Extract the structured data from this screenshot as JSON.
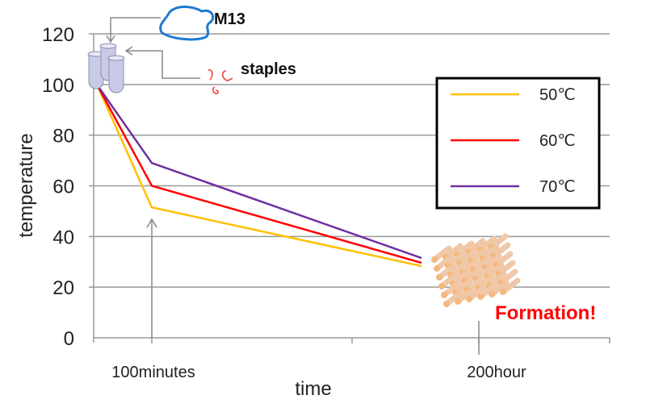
{
  "chart_data": {
    "type": "line",
    "xlabel": "time",
    "ylabel": "temperature",
    "ylim": [
      0,
      120
    ],
    "yticks": [
      0,
      20,
      40,
      60,
      80,
      100,
      120
    ],
    "xtick_labels": [
      "100minutes",
      "200hour"
    ],
    "grid": true,
    "legend_position": "right",
    "series": [
      {
        "name": "50℃",
        "color": "#FFC000",
        "values": [
          100,
          51.5,
          28.3
        ]
      },
      {
        "name": "60℃",
        "color": "#FF0000",
        "values": [
          100,
          60,
          29.6
        ]
      },
      {
        "name": "70℃",
        "color": "#7030A0",
        "values": [
          100,
          69,
          31.5
        ]
      }
    ],
    "annotations": {
      "m13": "M13",
      "staples": "staples",
      "formation": "Formation!"
    }
  }
}
